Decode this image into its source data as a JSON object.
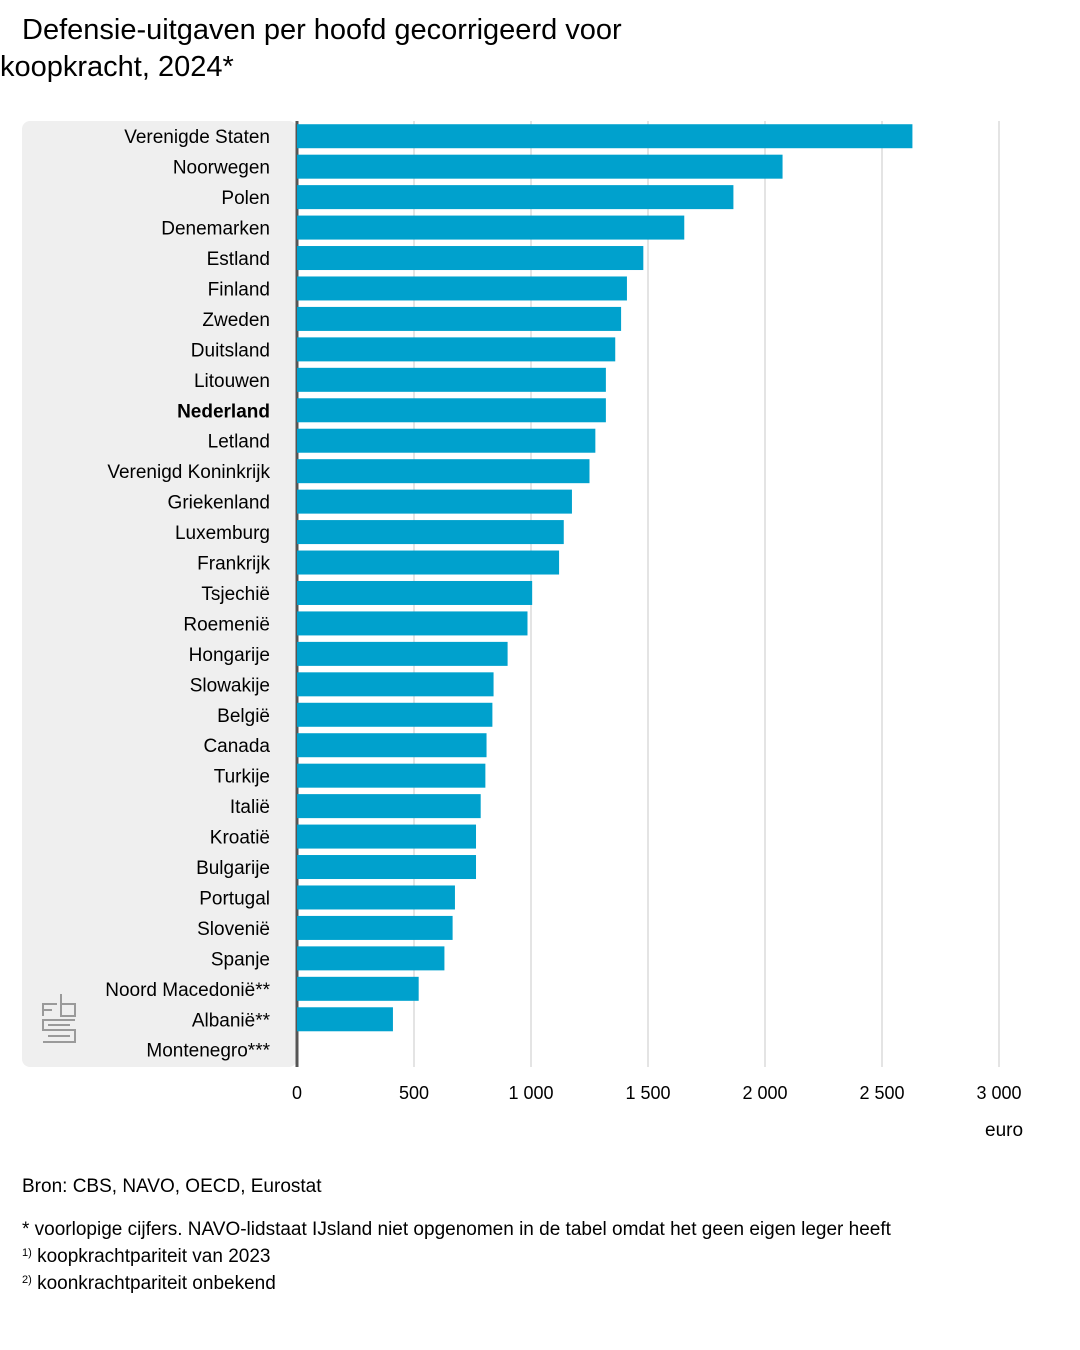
{
  "title": "Defensie-uitgaven per hoofd gecorrigeerd voor koopkracht, 2024*",
  "unit_label": "euro",
  "source": "Bron: CBS, NAVO, OECD, Eurostat",
  "notes": [
    {
      "marker": "",
      "text": "* voorlopige cijfers. NAVO-lidstaat IJsland niet opgenomen in de tabel omdat het geen eigen leger heeft"
    },
    {
      "marker": "1)",
      "text": "koopkrachtpariteit van 2023"
    },
    {
      "marker": "2)",
      "text": "koonkrachtpariteit onbekend"
    }
  ],
  "logo": "cbs-logo",
  "chart_data": {
    "type": "bar",
    "orientation": "horizontal",
    "highlight": "Nederland",
    "bar_color": "#00a1cd",
    "panel_color": "#efefef",
    "grid": true,
    "xlim": [
      0,
      3000
    ],
    "xticks": [
      0,
      500,
      1000,
      1500,
      2000,
      2500,
      3000
    ],
    "xtick_labels": [
      "0",
      "500",
      "1 000",
      "1 500",
      "2 000",
      "2 500",
      "3 000"
    ],
    "categories": [
      "Verenigde Staten",
      "Noorwegen",
      "Polen",
      "Denemarken",
      "Estland",
      "Finland",
      "Zweden",
      "Duitsland",
      "Litouwen",
      "Nederland",
      "Letland",
      "Verenigd Koninkrijk",
      "Griekenland",
      "Luxemburg",
      "Frankrijk",
      "Tsjechië",
      "Roemenië",
      "Hongarije",
      "Slowakije",
      "België",
      "Canada",
      "Turkije",
      "Italië",
      "Kroatië",
      "Bulgarije",
      "Portugal",
      "Slovenië",
      "Spanje",
      "Noord Macedonië**",
      "Albanië**",
      "Montenegro***"
    ],
    "values": [
      2630,
      2075,
      1865,
      1655,
      1480,
      1410,
      1385,
      1360,
      1320,
      1320,
      1275,
      1250,
      1175,
      1140,
      1120,
      1005,
      985,
      900,
      840,
      835,
      810,
      805,
      785,
      765,
      765,
      675,
      665,
      630,
      520,
      410,
      null
    ]
  }
}
